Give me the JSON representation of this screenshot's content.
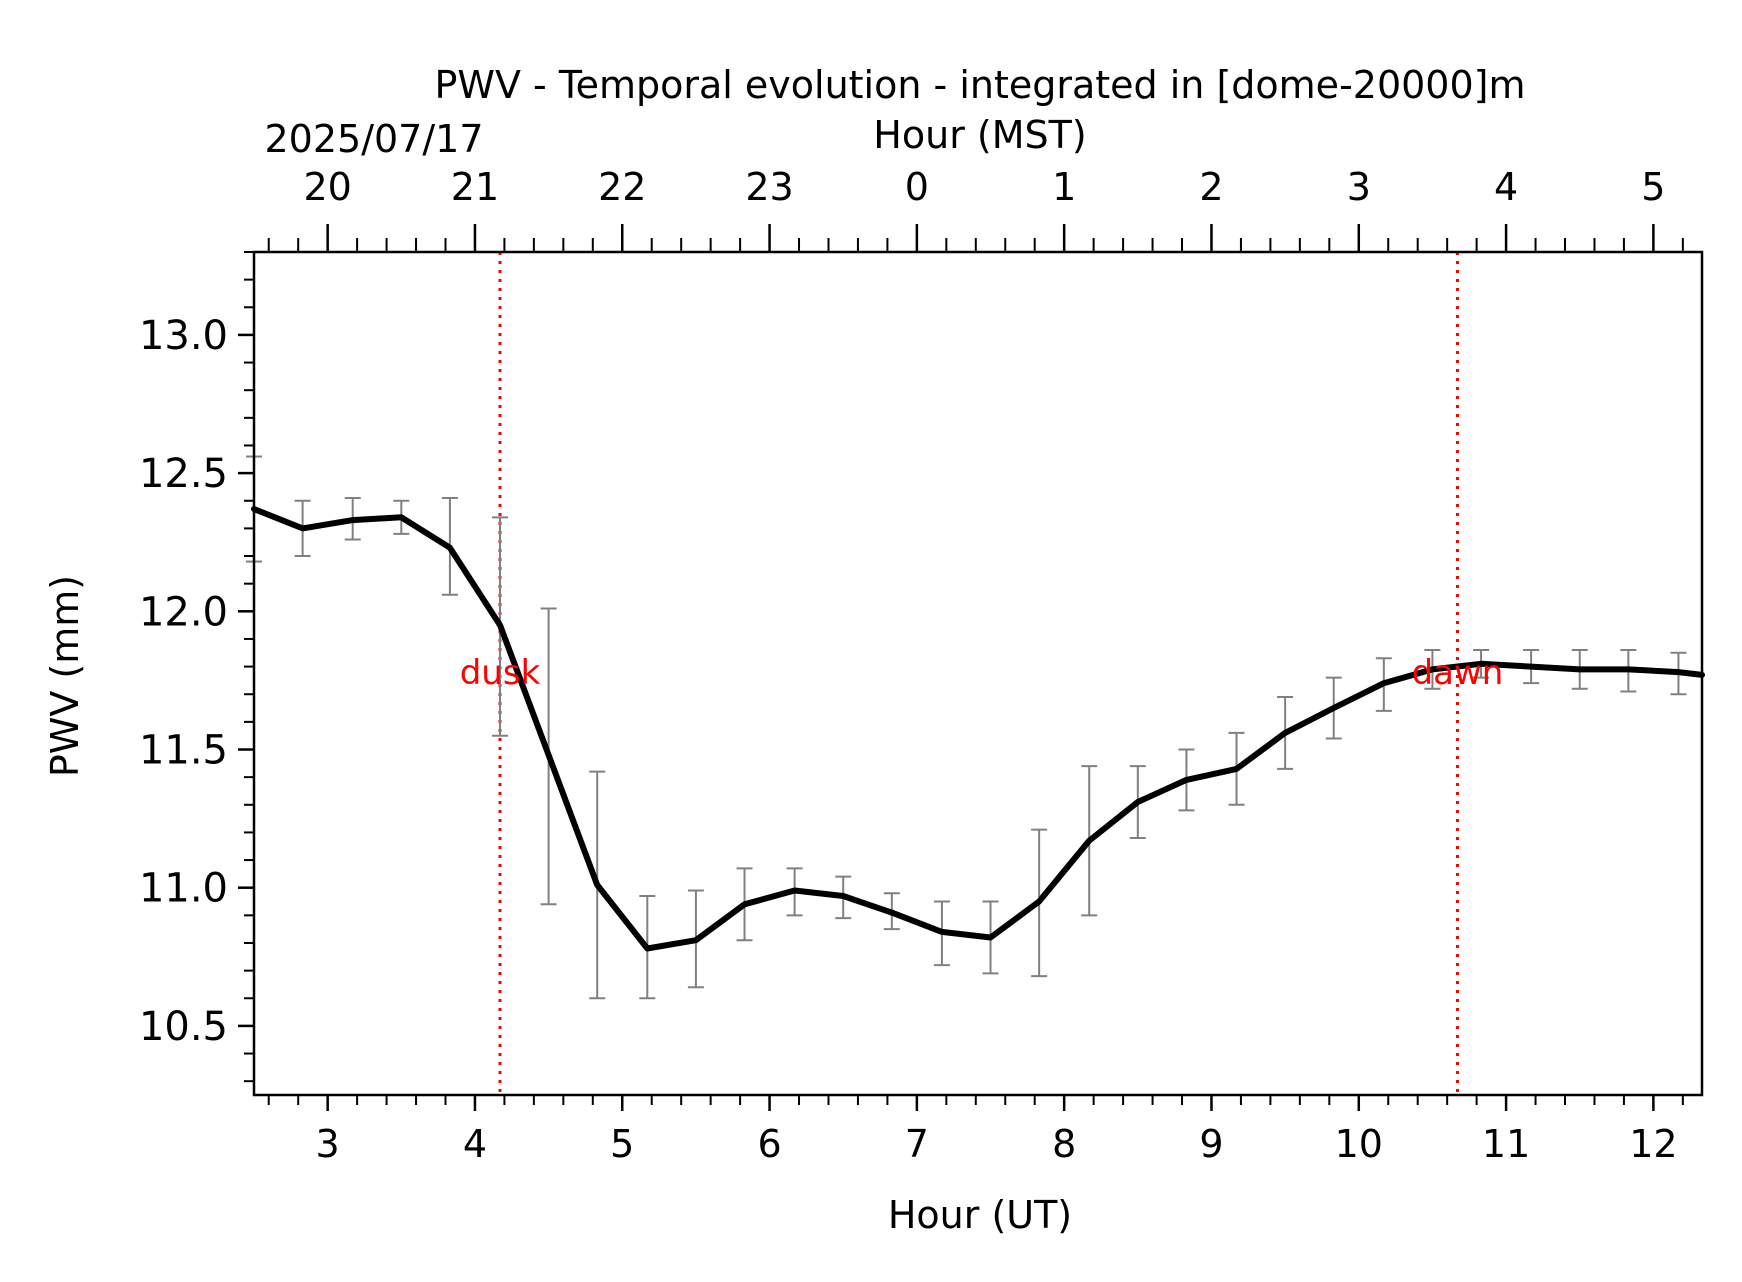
{
  "chart_data": {
    "type": "line",
    "title": "PWV - Temporal evolution - integrated in [dome-20000]m",
    "date_label": "2025/07/17",
    "xlabel": "Hour (UT)",
    "x2label": "Hour (MST)",
    "ylabel": "PWV (mm)",
    "xlim": [
      2.5,
      12.33
    ],
    "ylim": [
      10.25,
      13.3
    ],
    "x_ticks": [
      3,
      4,
      5,
      6,
      7,
      8,
      9,
      10,
      11,
      12
    ],
    "x_tick_labels": [
      "3",
      "4",
      "5",
      "6",
      "7",
      "8",
      "9",
      "10",
      "11",
      "12"
    ],
    "x2_ticks": [
      3,
      4,
      5,
      6,
      7,
      8,
      9,
      10,
      11,
      12
    ],
    "x2_tick_labels": [
      "20",
      "21",
      "22",
      "23",
      "0",
      "1",
      "2",
      "3",
      "4",
      "5"
    ],
    "y_ticks": [
      10.5,
      11.0,
      11.5,
      12.0,
      12.5,
      13.0
    ],
    "y_tick_labels": [
      "10.5",
      "11.0",
      "11.5",
      "12.0",
      "12.5",
      "13.0"
    ],
    "series": [
      {
        "name": "PWV",
        "color": "#000000",
        "x": [
          2.5,
          2.83,
          3.17,
          3.5,
          3.83,
          4.17,
          4.5,
          4.83,
          5.17,
          5.5,
          5.83,
          6.17,
          6.5,
          6.83,
          7.17,
          7.5,
          7.83,
          8.17,
          8.5,
          8.83,
          9.17,
          9.5,
          9.83,
          10.17,
          10.5,
          10.83,
          11.17,
          11.5,
          11.83,
          12.17,
          12.33
        ],
        "y": [
          12.37,
          12.3,
          12.33,
          12.34,
          12.23,
          11.95,
          11.48,
          11.01,
          10.78,
          10.81,
          10.94,
          10.99,
          10.97,
          10.91,
          10.84,
          10.82,
          10.95,
          11.17,
          11.31,
          11.39,
          11.43,
          11.56,
          11.65,
          11.74,
          11.79,
          11.81,
          11.8,
          11.79,
          11.79,
          11.78,
          11.77
        ],
        "err_low": [
          12.18,
          12.2,
          12.26,
          12.28,
          12.06,
          11.55,
          10.94,
          10.6,
          10.6,
          10.64,
          10.81,
          10.9,
          10.89,
          10.85,
          10.72,
          10.69,
          10.68,
          10.9,
          11.18,
          11.28,
          11.3,
          11.43,
          11.54,
          11.64,
          11.72,
          11.76,
          11.74,
          11.72,
          11.71,
          11.7,
          null
        ],
        "err_high": [
          12.56,
          12.4,
          12.41,
          12.4,
          12.41,
          12.34,
          12.01,
          11.42,
          10.97,
          10.99,
          11.07,
          11.07,
          11.04,
          10.98,
          10.95,
          10.95,
          11.21,
          11.44,
          11.44,
          11.5,
          11.56,
          11.69,
          11.76,
          11.83,
          11.86,
          11.86,
          11.86,
          11.86,
          11.86,
          11.85,
          null
        ]
      }
    ],
    "error_bar_color": "#808080",
    "annotations": [
      {
        "label": "dusk",
        "x": 4.17,
        "y": 11.78,
        "color": "#ff0000"
      },
      {
        "label": "dawn",
        "x": 10.67,
        "y": 11.78,
        "color": "#ff0000"
      }
    ],
    "vlines": [
      {
        "x": 4.17,
        "color": "#ff0000",
        "style": "dotted"
      },
      {
        "x": 10.67,
        "color": "#ff0000",
        "style": "dotted"
      }
    ]
  }
}
